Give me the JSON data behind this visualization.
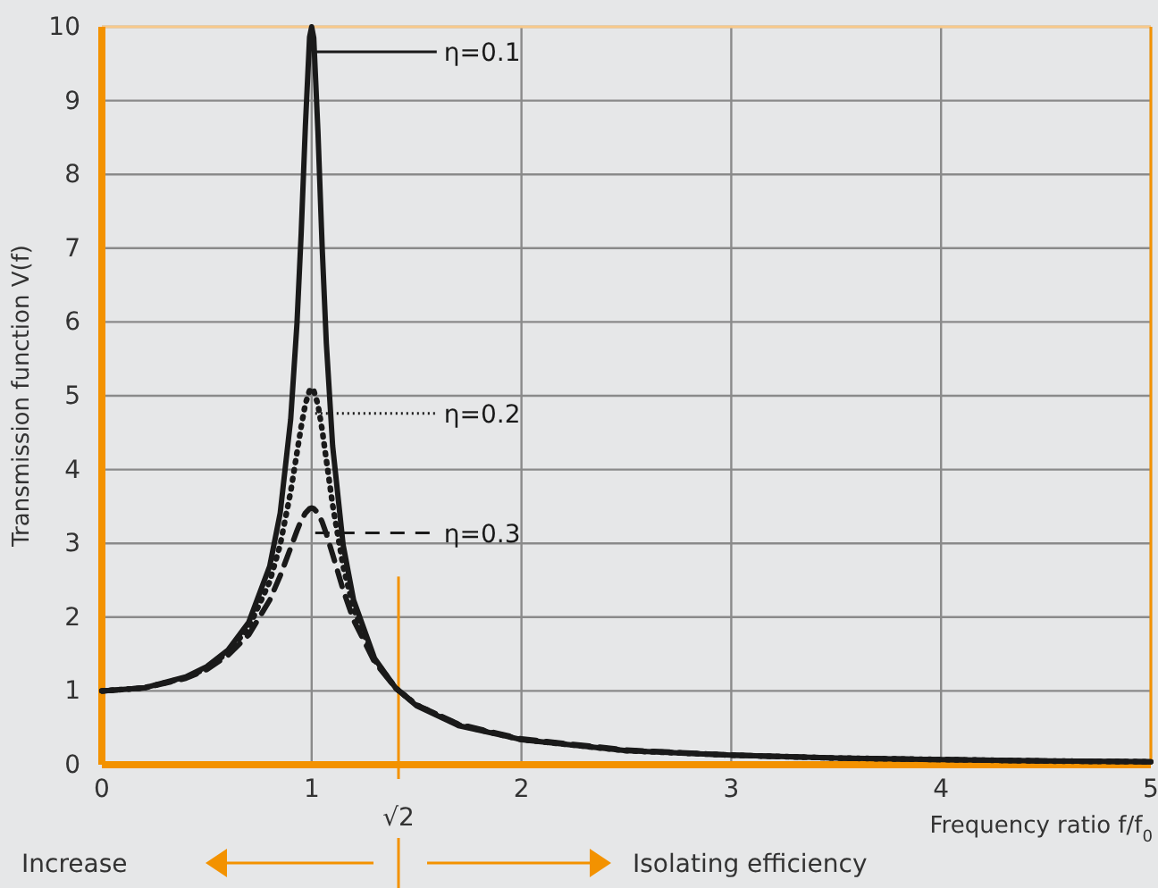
{
  "chart_data": {
    "type": "line",
    "xlabel": "Frequency ratio f/f$_{0}$",
    "ylabel": "Transmission function V(f)",
    "x": [
      0,
      0.2,
      0.4,
      0.5,
      0.6,
      0.7,
      0.8,
      0.85,
      0.9,
      0.93,
      0.95,
      0.97,
      0.99,
      1,
      1.01,
      1.03,
      1.05,
      1.07,
      1.1,
      1.15,
      1.2,
      1.3,
      1.4,
      1.5,
      1.7,
      2,
      2.5,
      3,
      3.5,
      4,
      4.5,
      5
    ],
    "series": [
      {
        "name": "η=0.1",
        "color": "#1a1a1a",
        "line_style": "solid",
        "values": [
          1,
          1.04,
          1.19,
          1.33,
          1.55,
          1.93,
          2.69,
          3.41,
          4.68,
          5.98,
          7.2,
          8.65,
          9.86,
          10,
          9.85,
          8.58,
          7.02,
          5.71,
          4.32,
          2.98,
          2.23,
          1.44,
          1.04,
          0.8,
          0.53,
          0.34,
          0.19,
          0.13,
          0.09,
          0.07,
          0.05,
          0.04
        ]
      },
      {
        "name": "η=0.2",
        "color": "#1a1a1a",
        "line_style": "dotted",
        "values": [
          1,
          1.04,
          1.18,
          1.31,
          1.52,
          1.86,
          2.48,
          2.98,
          3.7,
          4.23,
          4.58,
          4.89,
          5.07,
          5.1,
          5.07,
          4.88,
          4.54,
          4.13,
          3.52,
          2.69,
          2.11,
          1.42,
          1.04,
          0.81,
          0.54,
          0.34,
          0.19,
          0.13,
          0.09,
          0.07,
          0.05,
          0.04
        ]
      },
      {
        "name": "η=0.3",
        "color": "#1a1a1a",
        "line_style": "dashed",
        "values": [
          1,
          1.04,
          1.17,
          1.29,
          1.48,
          1.76,
          2.23,
          2.56,
          2.94,
          3.17,
          3.31,
          3.41,
          3.47,
          3.48,
          3.47,
          3.41,
          3.29,
          3.13,
          2.85,
          2.37,
          1.96,
          1.39,
          1.04,
          0.81,
          0.55,
          0.35,
          0.2,
          0.13,
          0.09,
          0.07,
          0.05,
          0.04
        ]
      }
    ],
    "xlim": [
      0,
      5
    ],
    "xticks": [
      0,
      1,
      2,
      3,
      4,
      5
    ],
    "ylim": [
      0,
      10
    ],
    "yticks": [
      0,
      1,
      2,
      3,
      4,
      5,
      6,
      7,
      8,
      9,
      10
    ],
    "grid": true,
    "legend": "top",
    "ref_lines": [
      {
        "axis": "x",
        "value": 1.414,
        "label": "√2",
        "color": "#f39200"
      }
    ],
    "annotations": [
      "Increase",
      "Isolating efficiency"
    ]
  }
}
